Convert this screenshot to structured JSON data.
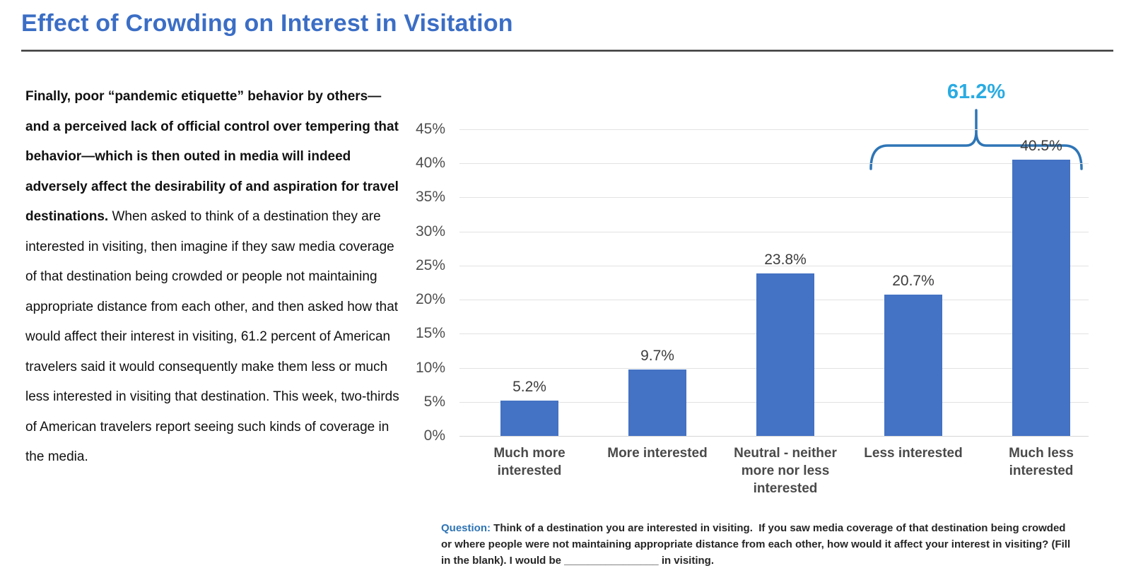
{
  "header": {
    "title": "Effect of Crowding on Interest in Visitation"
  },
  "narrative": {
    "bold_text": "Finally, poor “pandemic etiquette” behavior by others—and a perceived lack of official control over tempering that behavior—which is then outed in media will indeed adversely affect the desirability of and aspiration for travel destinations.",
    "regular_text": " When asked to think of a destination they are interested in visiting, then imagine if they saw media coverage of that destination being crowded or people not maintaining appropriate distance from each other, and then asked how that would affect their interest in visiting, 61.2 percent of American travelers said it would consequently make them less or much less interested in visiting that destination. This week, two-thirds of American travelers report seeing such kinds of coverage in the media."
  },
  "chart_data": {
    "type": "bar",
    "title": "",
    "categories": [
      "Much more interested",
      "More interested",
      "Neutral - neither more nor less interested",
      "Less interested",
      "Much less interested"
    ],
    "values": [
      5.2,
      9.7,
      23.8,
      20.7,
      40.5
    ],
    "value_labels": [
      "5.2%",
      "9.7%",
      "23.8%",
      "20.7%",
      "40.5%"
    ],
    "xlabel": "",
    "ylabel": "",
    "ylim": [
      0,
      45
    ],
    "ytick_step": 5,
    "ytick_labels": [
      "0%",
      "5%",
      "10%",
      "15%",
      "20%",
      "25%",
      "30%",
      "35%",
      "40%",
      "45%"
    ],
    "grid": true,
    "legend": false,
    "bar_color": "#4472C4",
    "gridline_color": "#e2e2e2",
    "annotation": {
      "label": "61.2%",
      "label_color": "#29ABE2",
      "brace_color": "#2E75B6",
      "covers_categories": [
        "Less interested",
        "Much less interested"
      ]
    }
  },
  "question": {
    "label": "Question:",
    "label_color": "#2E74B5",
    "text": " Think of a destination you are interested in visiting.  If you saw media coverage of that destination being crowded or where people were not maintaining appropriate distance from each other, how would it affect your interest in visiting? (Fill in the blank). I would be ________________ in visiting."
  }
}
